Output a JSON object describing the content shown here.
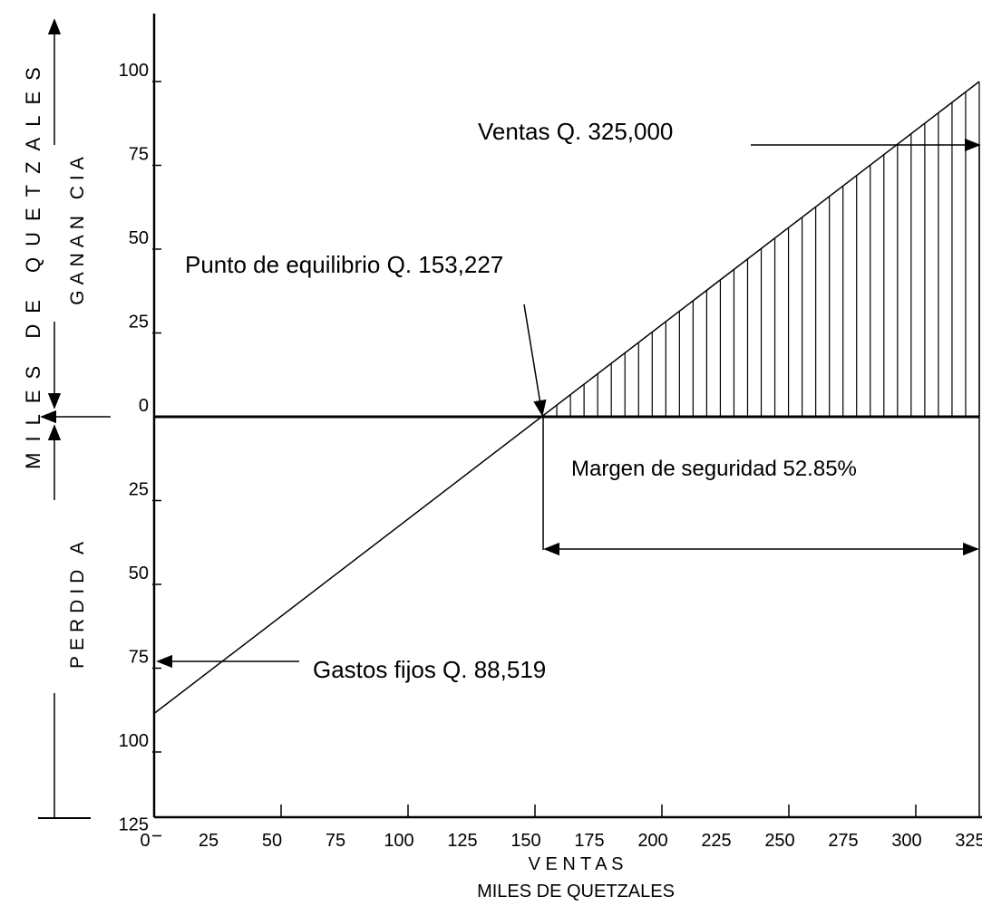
{
  "chart_data": {
    "type": "line",
    "title": "",
    "ylabel": "MILES DE QUETZALES",
    "ylabel_gain": "GANAN CIA",
    "ylabel_loss": "PERDID A",
    "xlabel": "V E N T A S",
    "xlabel_sub": "MILES DE QUETZALES",
    "x_ticks": [
      "0",
      "25",
      "50",
      "75",
      "100",
      "125",
      "150",
      "175",
      "200",
      "225",
      "250",
      "275",
      "300",
      "325"
    ],
    "y_ticks": [
      "125",
      "100",
      "75",
      "50",
      "25",
      "0",
      "25",
      "50",
      "75",
      "100",
      "125"
    ],
    "y_tick_values": [
      125,
      100,
      75,
      50,
      25,
      0,
      -25,
      -50,
      -75,
      -100,
      -125
    ],
    "xlim": [
      0,
      325
    ],
    "ylim": [
      -145,
      145
    ],
    "series": [
      {
        "x": [
          0,
          325
        ],
        "values": [
          -88.519,
          100
        ]
      }
    ],
    "annotations": {
      "sales": "Ventas Q. 325,000",
      "breakeven": "Punto de equilibrio Q. 153,227",
      "fixed_costs": "Gastos fijos Q. 88,519",
      "safety_margin": "Margen de seguridad  52.85%"
    },
    "breakeven_x": 153.227,
    "fixed_costs_value": 88.519,
    "sales_value": 325,
    "safety_margin_percent": 52.85
  }
}
